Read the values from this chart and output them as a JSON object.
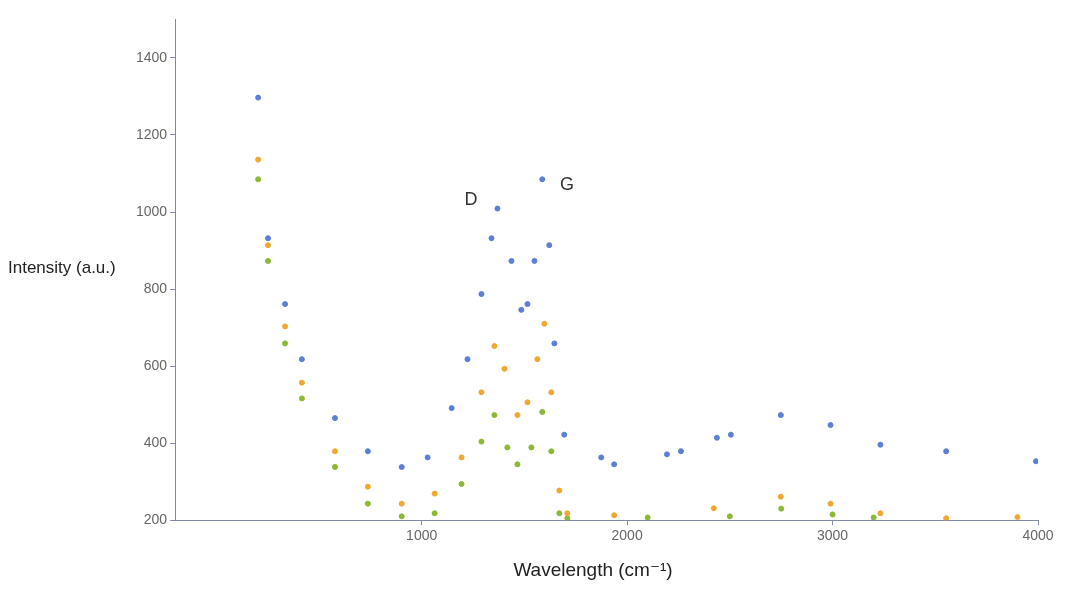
{
  "chart_data": {
    "type": "scatter",
    "xlabel": "Wavelength (cm⁻¹)",
    "ylabel": "Intensity (a.u.)",
    "xlim": [
      -200,
      4000
    ],
    "xticks": [
      1000,
      2000,
      3000,
      4000
    ],
    "ylim": [
      200,
      1500
    ],
    "yticks": [
      200,
      400,
      600,
      800,
      1000,
      1200,
      1400
    ],
    "grid": false,
    "legend": false,
    "marker": "circle",
    "annotations": [
      "D",
      "G"
    ],
    "series": [
      {
        "color": "#5b7fd6",
        "x": [
          204,
          252,
          335,
          417,
          578,
          738,
          903,
          1029,
          1146,
          1223,
          1291,
          1340,
          1369,
          1437,
          1485,
          1515,
          1549,
          1587,
          1621,
          1646,
          1694,
          1874,
          1937,
          2194,
          2262,
          2437,
          2505,
          2748,
          2990,
          3233,
          3553,
          3990
        ],
        "values": [
          1297,
          932,
          761,
          618,
          465,
          379,
          338,
          363,
          491,
          618,
          787,
          932,
          1009,
          873,
          746,
          761,
          873,
          1085,
          914,
          659,
          422,
          363,
          345,
          371,
          379,
          414,
          422,
          473,
          447,
          396,
          379,
          353
        ]
      },
      {
        "color": "#f0a830",
        "x": [
          204,
          252,
          335,
          417,
          578,
          738,
          903,
          1063,
          1194,
          1291,
          1354,
          1403,
          1466,
          1515,
          1563,
          1597,
          1631,
          1670,
          1709,
          1937,
          2422,
          2748,
          2990,
          3233,
          3553,
          3900
        ],
        "values": [
          1136,
          914,
          703,
          557,
          379,
          287,
          243,
          269,
          363,
          532,
          652,
          593,
          473,
          506,
          618,
          710,
          532,
          277,
          218,
          213,
          231,
          261,
          243,
          218,
          205,
          208
        ]
      },
      {
        "color": "#8cb832",
        "x": [
          204,
          252,
          335,
          417,
          578,
          738,
          903,
          1063,
          1194,
          1291,
          1354,
          1417,
          1466,
          1534,
          1587,
          1631,
          1670,
          1709,
          2100,
          2500,
          2750,
          3000,
          3200
        ],
        "values": [
          1085,
          873,
          659,
          516,
          338,
          243,
          210,
          218,
          294,
          404,
          473,
          389,
          345,
          389,
          481,
          379,
          218,
          205,
          207,
          210,
          230,
          215,
          207
        ]
      }
    ]
  }
}
